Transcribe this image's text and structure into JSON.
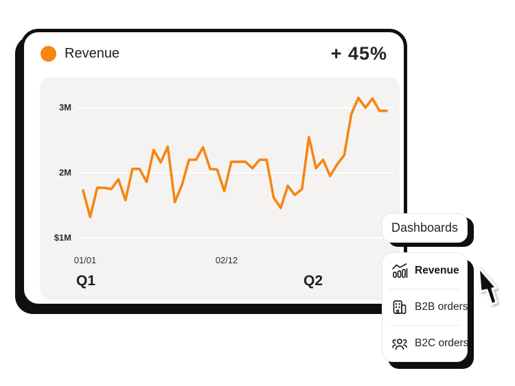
{
  "card": {
    "title": "Revenue",
    "delta": "+ 45%",
    "accent_color": "#F68511"
  },
  "chart_data": {
    "type": "line",
    "title": "Revenue",
    "grid": true,
    "legend": "none",
    "ylim": [
      1.0,
      3.4
    ],
    "y_unit": "millions USD",
    "series": [
      {
        "name": "Revenue",
        "color": "#F68511",
        "values": [
          1.73,
          1.32,
          1.77,
          1.77,
          1.75,
          1.9,
          1.58,
          2.06,
          2.06,
          1.86,
          2.35,
          2.16,
          2.4,
          1.55,
          1.81,
          2.2,
          2.2,
          2.39,
          2.06,
          2.05,
          1.72,
          2.17,
          2.17,
          2.17,
          2.07,
          2.2,
          2.2,
          1.62,
          1.46,
          1.8,
          1.66,
          1.75,
          2.55,
          2.07,
          2.2,
          1.95,
          2.13,
          2.27,
          2.9,
          3.15,
          3.0,
          3.14,
          2.95,
          2.95
        ]
      }
    ],
    "y_axis": {
      "ticks": [
        {
          "label": "3M",
          "value": 3.0
        },
        {
          "label": "2M",
          "value": 2.0
        },
        {
          "label": "$1M",
          "value": 1.0
        }
      ]
    },
    "x_axis": {
      "date_labels": [
        {
          "label": "01/01"
        },
        {
          "label": "02/12"
        }
      ],
      "quarter_labels": [
        {
          "label": "Q1"
        },
        {
          "label": "Q2"
        }
      ]
    }
  },
  "dashboards_button": {
    "label": "Dashboards"
  },
  "menu": {
    "items": [
      {
        "label": "Revenue",
        "icon": "chart-trend-icon",
        "active": true
      },
      {
        "label": "B2B orders",
        "icon": "building-icon",
        "active": false
      },
      {
        "label": "B2C orders",
        "icon": "people-group-icon",
        "active": false
      }
    ]
  }
}
